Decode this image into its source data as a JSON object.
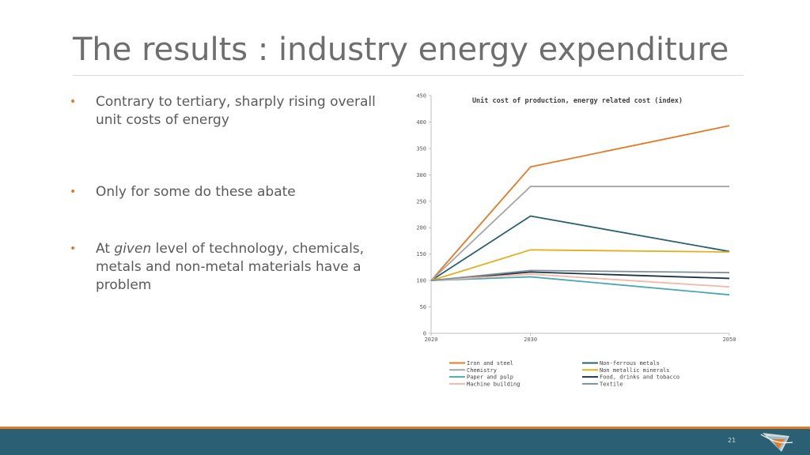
{
  "slide": {
    "title": "The results : industry energy expenditure",
    "page_number": "21"
  },
  "bullets": [
    {
      "id": "b1",
      "parts": [
        {
          "text": "Contrary to tertiary, sharply rising overall unit costs of energy",
          "italic": false
        }
      ]
    },
    {
      "id": "b2",
      "parts": [
        {
          "text": "Only for some do these abate",
          "italic": false
        }
      ]
    },
    {
      "id": "b3",
      "parts": [
        {
          "text": "At ",
          "italic": false
        },
        {
          "text": "given",
          "italic": true
        },
        {
          "text": " level of technology, chemicals, metals and non-metal materials have a problem",
          "italic": false
        }
      ]
    }
  ],
  "bullet_marker": "•",
  "chart_data": {
    "type": "line",
    "title": "Unit cost of production, energy related cost (index)",
    "x": [
      "2020",
      "2030",
      "2050"
    ],
    "ylim": [
      0,
      450
    ],
    "yticks": [
      0,
      50,
      100,
      150,
      200,
      250,
      300,
      350,
      400,
      450
    ],
    "grid": false,
    "legend_position": "bottom",
    "series": [
      {
        "name": "Iron and steel",
        "color": "#e07b28",
        "values": [
          100,
          315,
          393
        ]
      },
      {
        "name": "Non-ferrous metals",
        "color": "#2b6070",
        "values": [
          100,
          222,
          155
        ]
      },
      {
        "name": "Chemistry",
        "color": "#a6a6a6",
        "values": [
          100,
          278,
          278
        ]
      },
      {
        "name": "Non metallic minerals",
        "color": "#e0b020",
        "values": [
          100,
          158,
          154
        ]
      },
      {
        "name": "Paper and pulp",
        "color": "#4aa8b0",
        "values": [
          100,
          107,
          73
        ]
      },
      {
        "name": "Food, drinks and tobacco",
        "color": "#1c3646",
        "values": [
          100,
          116,
          104
        ]
      },
      {
        "name": "Machine building",
        "color": "#f2b7a8",
        "values": [
          100,
          112,
          88
        ]
      },
      {
        "name": "Textile",
        "color": "#7f8f98",
        "values": [
          100,
          119,
          115
        ]
      }
    ]
  }
}
